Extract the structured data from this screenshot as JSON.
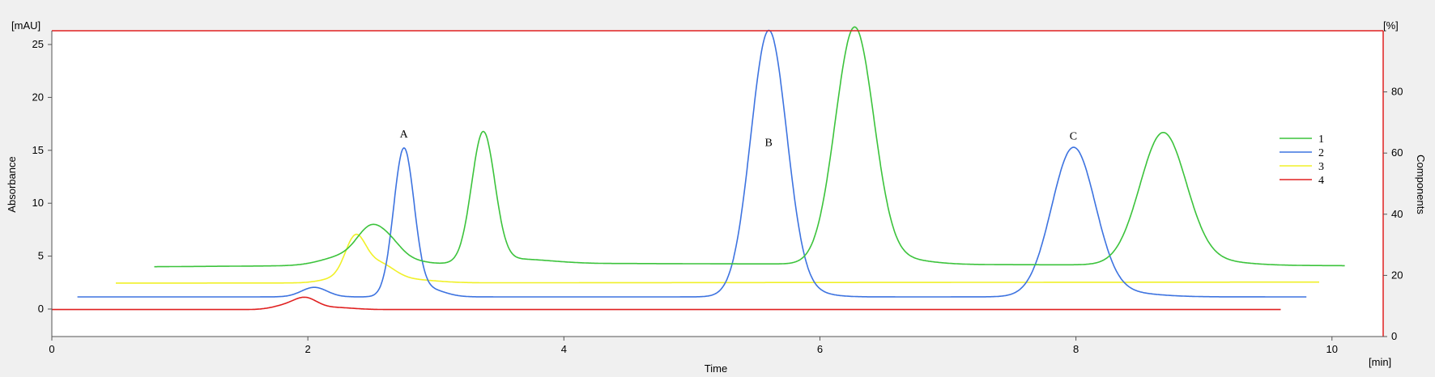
{
  "chart_data": {
    "type": "line",
    "xlabel": "Time",
    "x_unit": "[min]",
    "ylabel": "Absorbance",
    "y_unit": "[mAU]",
    "y2label": "Components",
    "y2_unit": "[%]",
    "xlim": [
      0,
      10.4
    ],
    "ylim": [
      -2.6,
      26.3
    ],
    "y2lim": [
      0,
      100
    ],
    "x_ticks": [
      "0",
      "2",
      "4",
      "6",
      "8",
      "10"
    ],
    "y_ticks": [
      "0",
      "5",
      "10",
      "15",
      "20",
      "25"
    ],
    "y2_ticks": [
      "0",
      "20",
      "40",
      "60",
      "80"
    ],
    "grid": false,
    "legend_position": "right",
    "annotations": [
      {
        "text": "A",
        "x": 2.75,
        "y": 16.2
      },
      {
        "text": "B",
        "x": 5.6,
        "y": 15.4
      },
      {
        "text": "C",
        "x": 7.98,
        "y": 16.0
      }
    ],
    "series": [
      {
        "name": "1",
        "color": "#3cc33c",
        "x_start": 0.8,
        "x_end": 10.1,
        "baseline": 4.0,
        "shape": [
          [
            2.3,
            0.9,
            0.18
          ],
          [
            2.5,
            3.1,
            0.11
          ],
          [
            2.66,
            1.2,
            0.09
          ],
          [
            2.8,
            0.4,
            0.12
          ],
          [
            3.37,
            12.2,
            0.09
          ],
          [
            3.6,
            0.5,
            0.3
          ],
          [
            6.27,
            22.1,
            0.15
          ],
          [
            6.55,
            0.6,
            0.25
          ],
          [
            8.68,
            12.2,
            0.18
          ],
          [
            8.95,
            0.5,
            0.3
          ]
        ],
        "drift": [
          [
            0.8,
            0.0
          ],
          [
            4.5,
            0.3
          ],
          [
            10.1,
            0.1
          ]
        ]
      },
      {
        "name": "2",
        "color": "#3d73e0",
        "x_start": 0.2,
        "x_end": 9.8,
        "baseline": 1.15,
        "shape": [
          [
            2.05,
            0.9,
            0.1
          ],
          [
            2.75,
            13.9,
            0.08
          ],
          [
            2.95,
            0.7,
            0.12
          ],
          [
            5.6,
            25.0,
            0.14
          ],
          [
            5.85,
            0.5,
            0.18
          ],
          [
            7.98,
            13.8,
            0.17
          ],
          [
            8.25,
            0.5,
            0.3
          ]
        ],
        "drift": []
      },
      {
        "name": "3",
        "color": "#f0f028",
        "x_start": 0.5,
        "x_end": 9.9,
        "baseline": 2.5,
        "shape": [
          [
            2.22,
            0.4,
            0.12
          ],
          [
            2.37,
            3.8,
            0.08
          ],
          [
            2.55,
            1.7,
            0.12
          ],
          [
            2.8,
            0.3,
            0.2
          ]
        ],
        "drift": [
          [
            0.5,
            -0.05
          ],
          [
            10,
            0.05
          ]
        ]
      },
      {
        "name": "4",
        "color": "#e02020",
        "x_start": 0.0,
        "x_end": 9.6,
        "baseline": -0.15,
        "shape": [
          [
            1.98,
            1.0,
            0.09
          ],
          [
            1.82,
            0.35,
            0.1
          ],
          [
            2.2,
            0.2,
            0.15
          ]
        ],
        "drift": [
          [
            0,
            0.1
          ],
          [
            9.6,
            0.1
          ]
        ]
      }
    ]
  }
}
